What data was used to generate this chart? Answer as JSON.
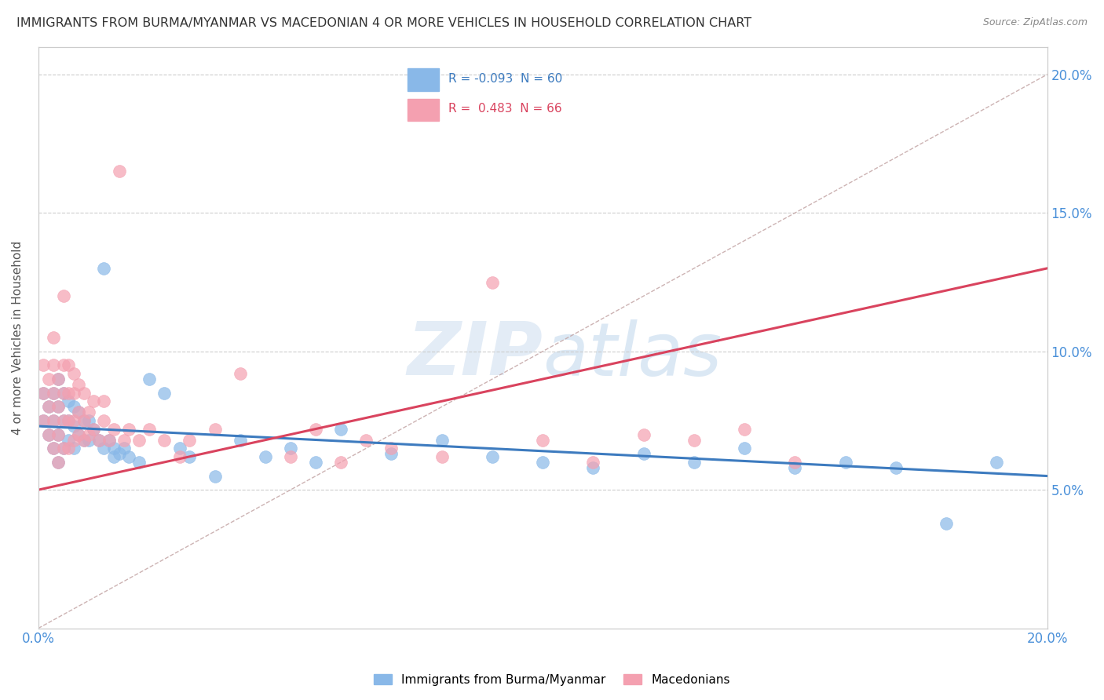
{
  "title": "IMMIGRANTS FROM BURMA/MYANMAR VS MACEDONIAN 4 OR MORE VEHICLES IN HOUSEHOLD CORRELATION CHART",
  "source": "Source: ZipAtlas.com",
  "ylabel": "4 or more Vehicles in Household",
  "ylabel_ticks": [
    "5.0%",
    "10.0%",
    "15.0%",
    "20.0%"
  ],
  "ylabel_tick_vals": [
    0.05,
    0.1,
    0.15,
    0.2
  ],
  "xmin": 0.0,
  "xmax": 0.2,
  "ymin": 0.0,
  "ymax": 0.21,
  "blue_R": -0.093,
  "blue_N": 60,
  "pink_R": 0.483,
  "pink_N": 66,
  "blue_color": "#89b8e8",
  "pink_color": "#f4a0b0",
  "blue_line_color": "#3d7bbf",
  "pink_line_color": "#d9435e",
  "blue_label": "Immigrants from Burma/Myanmar",
  "pink_label": "Macedonians",
  "blue_line_start_y": 0.073,
  "blue_line_end_y": 0.055,
  "pink_line_start_y": 0.05,
  "pink_line_end_y": 0.13,
  "blue_scatter_x": [
    0.001,
    0.001,
    0.002,
    0.002,
    0.003,
    0.003,
    0.003,
    0.004,
    0.004,
    0.004,
    0.004,
    0.005,
    0.005,
    0.005,
    0.006,
    0.006,
    0.006,
    0.007,
    0.007,
    0.007,
    0.008,
    0.008,
    0.009,
    0.009,
    0.01,
    0.01,
    0.011,
    0.012,
    0.013,
    0.013,
    0.014,
    0.015,
    0.015,
    0.016,
    0.017,
    0.018,
    0.02,
    0.022,
    0.025,
    0.028,
    0.03,
    0.035,
    0.04,
    0.045,
    0.05,
    0.055,
    0.06,
    0.07,
    0.08,
    0.09,
    0.1,
    0.11,
    0.12,
    0.13,
    0.14,
    0.15,
    0.16,
    0.17,
    0.18,
    0.19
  ],
  "blue_scatter_y": [
    0.075,
    0.085,
    0.07,
    0.08,
    0.065,
    0.075,
    0.085,
    0.06,
    0.07,
    0.08,
    0.09,
    0.065,
    0.075,
    0.085,
    0.068,
    0.075,
    0.082,
    0.065,
    0.073,
    0.08,
    0.07,
    0.078,
    0.068,
    0.075,
    0.068,
    0.075,
    0.072,
    0.068,
    0.065,
    0.13,
    0.068,
    0.062,
    0.065,
    0.063,
    0.065,
    0.062,
    0.06,
    0.09,
    0.085,
    0.065,
    0.062,
    0.055,
    0.068,
    0.062,
    0.065,
    0.06,
    0.072,
    0.063,
    0.068,
    0.062,
    0.06,
    0.058,
    0.063,
    0.06,
    0.065,
    0.058,
    0.06,
    0.058,
    0.038,
    0.06
  ],
  "pink_scatter_x": [
    0.001,
    0.001,
    0.001,
    0.002,
    0.002,
    0.002,
    0.003,
    0.003,
    0.003,
    0.003,
    0.003,
    0.004,
    0.004,
    0.004,
    0.004,
    0.005,
    0.005,
    0.005,
    0.005,
    0.005,
    0.006,
    0.006,
    0.006,
    0.006,
    0.007,
    0.007,
    0.007,
    0.007,
    0.008,
    0.008,
    0.008,
    0.009,
    0.009,
    0.009,
    0.01,
    0.01,
    0.011,
    0.011,
    0.012,
    0.013,
    0.013,
    0.014,
    0.015,
    0.016,
    0.017,
    0.018,
    0.02,
    0.022,
    0.025,
    0.028,
    0.03,
    0.035,
    0.04,
    0.05,
    0.055,
    0.06,
    0.065,
    0.07,
    0.08,
    0.09,
    0.1,
    0.11,
    0.12,
    0.13,
    0.14,
    0.15
  ],
  "pink_scatter_y": [
    0.075,
    0.085,
    0.095,
    0.07,
    0.08,
    0.09,
    0.065,
    0.075,
    0.085,
    0.095,
    0.105,
    0.06,
    0.07,
    0.08,
    0.09,
    0.065,
    0.075,
    0.085,
    0.095,
    0.12,
    0.065,
    0.075,
    0.085,
    0.095,
    0.068,
    0.075,
    0.085,
    0.092,
    0.07,
    0.078,
    0.088,
    0.068,
    0.075,
    0.085,
    0.07,
    0.078,
    0.072,
    0.082,
    0.068,
    0.075,
    0.082,
    0.068,
    0.072,
    0.165,
    0.068,
    0.072,
    0.068,
    0.072,
    0.068,
    0.062,
    0.068,
    0.072,
    0.092,
    0.062,
    0.072,
    0.06,
    0.068,
    0.065,
    0.062,
    0.125,
    0.068,
    0.06,
    0.07,
    0.068,
    0.072,
    0.06
  ]
}
